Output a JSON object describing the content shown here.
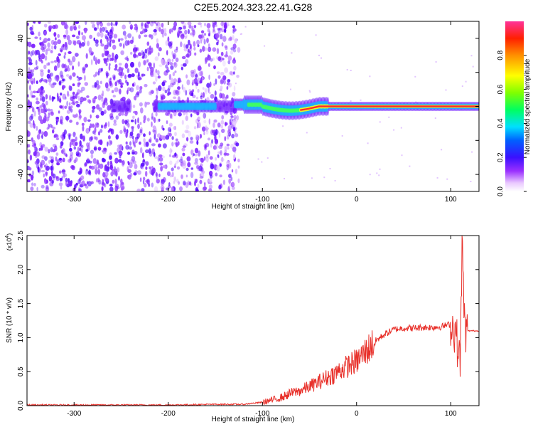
{
  "title": "C2E5.2024.323.22.41.G28",
  "chart_data": [
    {
      "type": "heatmap",
      "xlabel": "Height of straight line (km)",
      "ylabel": "Frequency (Hz)",
      "xlim": [
        -350,
        130
      ],
      "ylim": [
        -50,
        50
      ],
      "x_ticks": [
        -300,
        -200,
        -100,
        0,
        100
      ],
      "y_ticks": [
        -40,
        -20,
        0,
        20,
        40
      ],
      "colorbar": {
        "label": "Normalized spectral amplitude",
        "range": [
          0,
          1
        ],
        "ticks": [
          0.0,
          0.2,
          0.4,
          0.6,
          0.8
        ]
      },
      "features": {
        "noise_region_x": [
          -350,
          -125
        ],
        "signal_start_x": -130,
        "center_line_freq": 0
      }
    },
    {
      "type": "line",
      "xlabel": "Height of straight line (km)",
      "ylabel": "SNR (10 * v/v)",
      "y_multiplier": "(x10",
      "y_multiplier_exp": "4",
      "y_multiplier_close": ")",
      "xlim": [
        -350,
        130
      ],
      "ylim": [
        0,
        2.5
      ],
      "x_ticks": [
        -300,
        -200,
        -100,
        0,
        100
      ],
      "y_ticks": [
        0.0,
        0.5,
        1.0,
        1.5,
        2.0,
        2.5
      ],
      "color": "#e8302a",
      "series": [
        {
          "x": [
            -350,
            -300,
            -250,
            -200,
            -150,
            -120,
            -100,
            -90,
            -80,
            -70,
            -60,
            -50,
            -40,
            -30,
            -20,
            -10,
            0,
            10,
            20,
            30,
            40,
            50,
            60,
            70,
            80,
            90,
            100,
            105,
            110,
            112,
            115,
            120,
            130
          ],
          "y": [
            0.01,
            0.01,
            0.01,
            0.01,
            0.02,
            0.02,
            0.05,
            0.08,
            0.12,
            0.18,
            0.22,
            0.28,
            0.35,
            0.42,
            0.5,
            0.58,
            0.65,
            0.8,
            0.95,
            1.05,
            1.12,
            1.14,
            1.14,
            1.15,
            1.15,
            1.16,
            1.2,
            1.1,
            0.6,
            2.4,
            1.1,
            1.1,
            1.1
          ]
        }
      ]
    }
  ]
}
